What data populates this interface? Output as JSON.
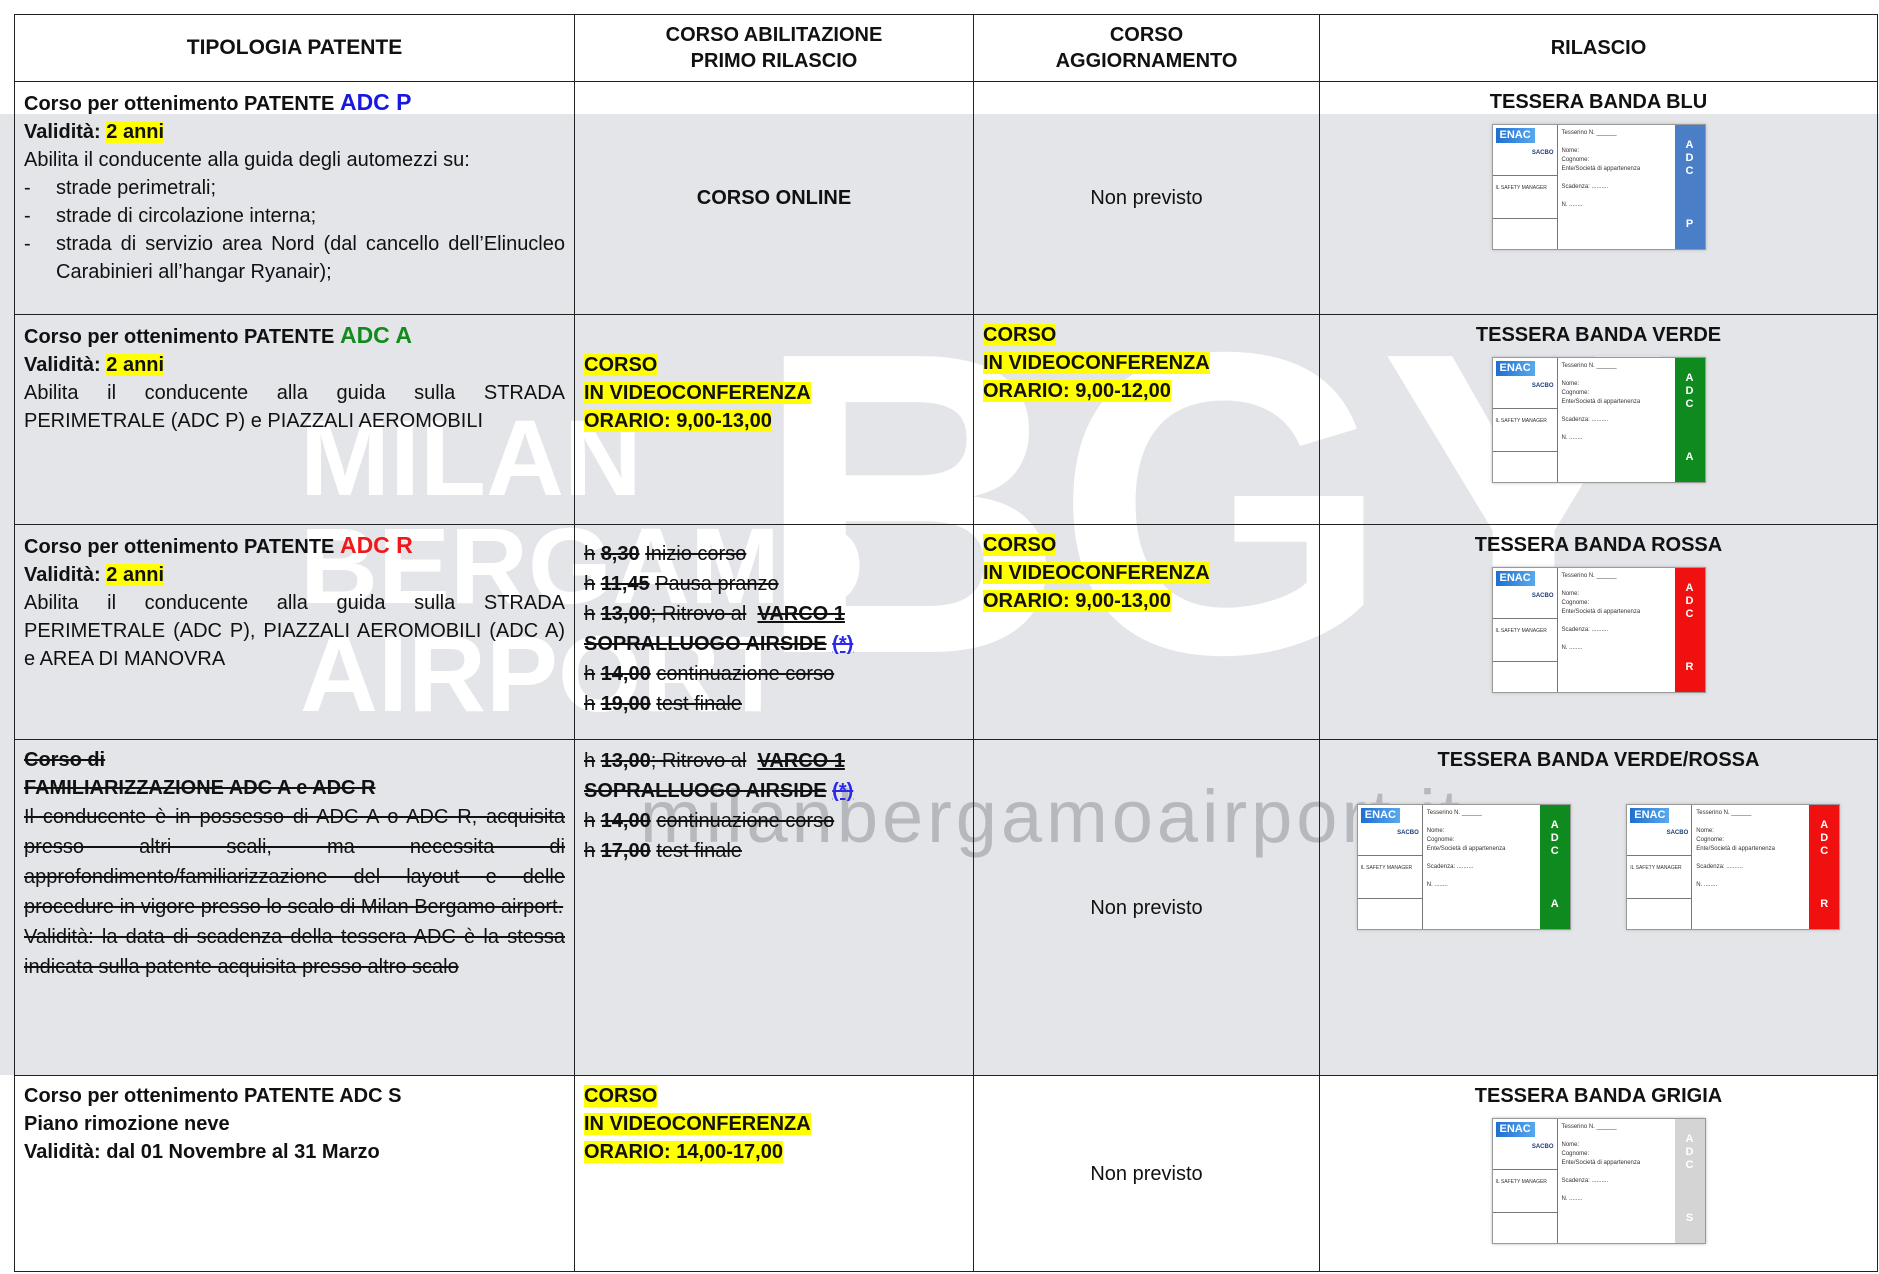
{
  "watermark": {
    "lines": [
      "MILAN",
      "BERGAMO",
      "AIRPORT"
    ],
    "logo": "BGY",
    "url": "milanbergamoairport.it"
  },
  "card": {
    "logo": "ENAC",
    "airport": "SACBO",
    "number": "Tesserino N. ______",
    "name": "Nome:",
    "surname": "Cognome:",
    "company": "Ente/Società di appartenenza",
    "expiry": "Scadenza: ..........",
    "n": "N. ........",
    "manager": "IL SAFETY MANAGER"
  },
  "table": {
    "header": [
      "TIPOLOGIA  PATENTE",
      "CORSO ABILITAZIONE PRIMO RILASCIO",
      "CORSO AGGIORNAMENTO",
      "RILASCIO"
    ],
    "rows": [
      {
        "type": {
          "title": "Corso per ottenimento PATENTE",
          "code": "ADC P",
          "validity_label": "Validità:",
          "validity": "2 anni",
          "text": "Abilita il conducente alla guida degli automezzi su:",
          "items": [
            "strade perimetrali;",
            "strade di circolazione interna;",
            "strada di servizio area Nord (dal cancello dell’Elinucleo Carabinieri all’hangar Ryanair);"
          ]
        },
        "first": [
          "CORSO ONLINE"
        ],
        "update": [
          "Non previsto"
        ],
        "release": {
          "title": "TESSERA BANDA BLU",
          "cards": [
            {
              "band": [
                "A",
                "D",
                "C",
                "P"
              ],
              "color": "#4a7fc8"
            }
          ]
        }
      },
      {
        "type": {
          "title": "Corso per ottenimento PATENTE",
          "code": "ADC A",
          "validity_label": "Validità:",
          "validity": "2 anni",
          "text": "Abilita il conducente alla guida sulla STRADA PERIMETRALE (ADC P) e PIAZZALI AEROMOBILI"
        },
        "first": [
          "CORSO",
          "IN VIDEOCONFERENZA",
          "ORARIO: 9,00-13,00"
        ],
        "update": [
          "CORSO",
          "IN VIDEOCONFERENZA",
          "ORARIO: 9,00-12,00"
        ],
        "release": {
          "title": "TESSERA BANDA VERDE",
          "cards": [
            {
              "band": [
                "A",
                "D",
                "C",
                "A"
              ],
              "color": "#0f8a1e"
            }
          ]
        }
      },
      {
        "type": {
          "title": "Corso per ottenimento PATENTE",
          "code": "ADC R",
          "validity_label": "Validità:",
          "validity": "2 anni",
          "text": "Abilita il conducente alla guida sulla STRADA PERIMETRALE (ADC P), PIAZZALI AEROMOBILI (ADC A) e AREA DI MANOVRA"
        },
        "first": [
          [
            "h",
            "8,30",
            "Inizio corso"
          ],
          [
            "h",
            "11,45",
            "Pausa pranzo"
          ],
          [
            "h",
            "13,00",
            "; Ritrovo al",
            "VARCO 1"
          ],
          [
            "SOPRALLUOGO AIRSIDE",
            "(*)"
          ],
          [
            "h",
            "14,00",
            "continuazione corso"
          ],
          [
            "h",
            "19,00",
            "test finale"
          ]
        ],
        "update": [
          "CORSO",
          "IN VIDEOCONFERENZA",
          "ORARIO: 9,00-13,00"
        ],
        "release": {
          "title": "TESSERA BANDA ROSSA",
          "cards": [
            {
              "band": [
                "A",
                "D",
                "C",
                "R"
              ],
              "color": "#f01010"
            }
          ]
        }
      },
      {
        "type": {
          "title": [
            "Corso di",
            "FAMILIARIZZAZIONE ADC A e ADC R"
          ],
          "text": "Il conducente è in possesso di ADC A o ADC R, acquisita presso altri scali, ma necessita di approfondimento/familiarizzazione del layout e delle procedure in vigore presso lo scalo di Milan Bergamo airport.",
          "validity": "Validità: la data di scadenza della tessera ADC è la stessa indicata sulla patente acquisita presso altro scalo"
        },
        "first": [
          [
            "h",
            "13,00",
            "; Ritrovo al",
            "VARCO 1"
          ],
          [
            "SOPRALLUOGO AIRSIDE",
            "(*)"
          ],
          [
            "h",
            "14,00",
            "continuazione corso"
          ],
          [
            "h",
            "17,00",
            "test finale"
          ]
        ],
        "update": [
          "Non previsto"
        ],
        "release": {
          "title": "TESSERA BANDA VERDE/ROSSA",
          "cards": [
            {
              "band": [
                "A",
                "D",
                "C",
                "A"
              ],
              "color": "#0f8a1e"
            },
            {
              "band": [
                "A",
                "D",
                "C",
                "R"
              ],
              "color": "#f01010"
            }
          ]
        }
      },
      {
        "type": {
          "title": "Corso per ottenimento PATENTE ADC S",
          "subtitle": "Piano rimozione neve",
          "validity": "Validità: dal 01 Novembre al 31 Marzo"
        },
        "first": [
          "CORSO",
          "IN VIDEOCONFERENZA",
          "ORARIO: 14,00-17,00"
        ],
        "update": [
          "Non previsto"
        ],
        "release": {
          "title": "TESSERA BANDA GRIGIA",
          "cards": [
            {
              "band": [
                "A",
                "D",
                "C",
                "S"
              ],
              "color": "#d4d4d4"
            }
          ]
        }
      }
    ]
  }
}
